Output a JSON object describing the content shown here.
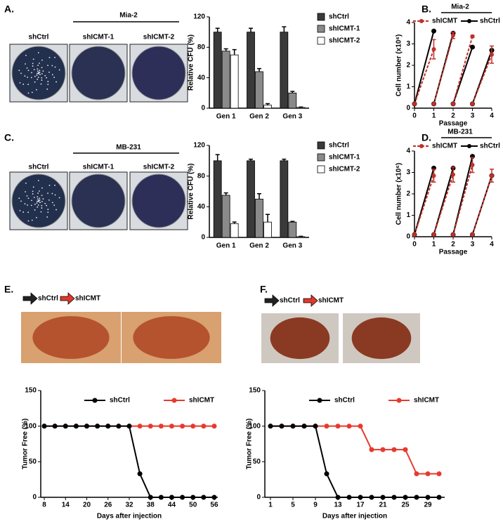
{
  "photos": [
    {
      "title": "Mia-2",
      "labels": [
        "shCtrl",
        "shICMT-1",
        "shICMT-2"
      ]
    },
    {
      "title": "MB-231",
      "labels": [
        "shCtrl",
        "shICMT-1",
        "shICMT-2"
      ]
    },
    {
      "labels": [
        "shCtrl",
        "shICMT"
      ]
    },
    {
      "labels": [
        "shCtrl",
        "shICMT"
      ]
    }
  ],
  "chart_data": [
    {
      "type": "bar",
      "panel": "A.",
      "ylabel": "Relative CFU (%)",
      "categories": [
        "Gen 1",
        "Gen 2",
        "Gen 3"
      ],
      "series": [
        {
          "name": "shCtrl",
          "color": "#3a3a3a",
          "values": [
            100,
            100,
            100
          ],
          "errors": [
            5,
            5,
            7
          ]
        },
        {
          "name": "shICMT-1",
          "color": "#8a8a8a",
          "values": [
            75,
            48,
            20
          ],
          "errors": [
            3,
            4,
            2
          ]
        },
        {
          "name": "shICMT-2",
          "color": "#ffffff",
          "values": [
            70,
            4,
            1
          ],
          "errors": [
            7,
            2,
            0.5
          ]
        }
      ],
      "ylim": [
        0,
        120
      ],
      "yticks": [
        0,
        40,
        80,
        120
      ]
    },
    {
      "type": "segment",
      "panel": "B.",
      "title": "Mia-2",
      "xlabel": "Passage",
      "ylabel": "Cell number (x10⁶)",
      "x": [
        0,
        1,
        1,
        2,
        2,
        3,
        3,
        4
      ],
      "series": [
        {
          "name": "shCtrl",
          "color": "#000000",
          "dashed": false,
          "values": [
            0.2,
            3.6,
            0.2,
            3.5,
            0.2,
            2.85,
            0.2,
            2.7
          ],
          "errors": [
            null,
            null,
            null,
            null,
            null,
            null,
            null,
            null
          ]
        },
        {
          "name": "shICMT",
          "color": "#c0302a",
          "dashed": true,
          "values": [
            0.2,
            2.75,
            0.2,
            3.4,
            0.2,
            3.35,
            0.2,
            2.5
          ],
          "errors": [
            null,
            0.45,
            null,
            0.15,
            null,
            0.05,
            null,
            0.4
          ]
        }
      ],
      "xlim": [
        0,
        4
      ],
      "xticks": [
        0,
        1,
        2,
        3,
        4
      ],
      "ylim": [
        0,
        4
      ],
      "yticks": [
        0,
        1,
        2,
        3,
        4
      ]
    },
    {
      "type": "bar",
      "panel": "C.",
      "ylabel": "Relative CFU (%)",
      "categories": [
        "Gen 1",
        "Gen 2",
        "Gen 3"
      ],
      "series": [
        {
          "name": "shCtrl",
          "color": "#3a3a3a",
          "values": [
            100,
            100,
            100
          ],
          "errors": [
            8,
            2,
            2
          ]
        },
        {
          "name": "shICMT-1",
          "color": "#8a8a8a",
          "values": [
            55,
            50,
            20
          ],
          "errors": [
            3,
            7,
            1
          ]
        },
        {
          "name": "shICMT-2",
          "color": "#ffffff",
          "values": [
            18,
            20,
            1
          ],
          "errors": [
            2,
            10,
            0.5
          ]
        }
      ],
      "ylim": [
        0,
        120
      ],
      "yticks": [
        0,
        40,
        80,
        120
      ]
    },
    {
      "type": "segment",
      "panel": "D.",
      "title": "MB-231",
      "xlabel": "Passage",
      "ylabel": "Cell number (x10⁶)",
      "x": [
        0,
        1,
        1,
        2,
        2,
        3,
        3,
        4
      ],
      "series": [
        {
          "name": "shCtrl",
          "color": "#000000",
          "dashed": false,
          "values": [
            0.1,
            3.2,
            0.1,
            3.2,
            0.1,
            3.75,
            0.1,
            2.85
          ],
          "errors": [
            null,
            null,
            null,
            null,
            null,
            null,
            null,
            null
          ]
        },
        {
          "name": "shICMT",
          "color": "#c0302a",
          "dashed": true,
          "values": [
            0.1,
            2.85,
            0.1,
            2.9,
            0.1,
            3.35,
            0.1,
            2.85
          ],
          "errors": [
            null,
            0.3,
            null,
            0.35,
            null,
            0.35,
            null,
            0.3
          ]
        }
      ],
      "xlim": [
        0,
        4
      ],
      "xticks": [
        0,
        1,
        2,
        3,
        4
      ],
      "ylim": [
        0,
        4
      ],
      "yticks": [
        0,
        1,
        2,
        3,
        4
      ]
    },
    {
      "type": "line",
      "panel": "E.",
      "xlabel": "Days after injection",
      "ylabel": "Tumor Free (%)",
      "x": [
        8,
        11,
        14,
        17,
        20,
        23,
        26,
        29,
        32,
        35,
        38,
        41,
        44,
        47,
        50,
        53,
        56
      ],
      "series": [
        {
          "name": "shICMT",
          "color": "#e8392e",
          "values": [
            100,
            100,
            100,
            100,
            100,
            100,
            100,
            100,
            100,
            100,
            100,
            100,
            100,
            100,
            100,
            100,
            100
          ]
        },
        {
          "name": "shCtrl",
          "color": "#000000",
          "values": [
            100,
            100,
            100,
            100,
            100,
            100,
            100,
            100,
            100,
            33,
            0,
            0,
            0,
            0,
            0,
            0,
            0
          ]
        }
      ],
      "xlim": [
        7,
        57
      ],
      "xticks": [
        8,
        14,
        20,
        26,
        32,
        38,
        44,
        50,
        56
      ],
      "ylim": [
        0,
        150
      ],
      "yticks": [
        0,
        50,
        100,
        150
      ]
    },
    {
      "type": "line",
      "panel": "F.",
      "xlabel": "Days after injection",
      "ylabel": "Tumor Free (%)",
      "x": [
        1,
        3,
        5,
        7,
        9,
        11,
        13,
        15,
        17,
        19,
        21,
        23,
        25,
        27,
        29,
        31
      ],
      "series": [
        {
          "name": "shICMT",
          "color": "#e8392e",
          "values": [
            100,
            100,
            100,
            100,
            100,
            100,
            100,
            100,
            100,
            67,
            67,
            67,
            67,
            33,
            33,
            33
          ]
        },
        {
          "name": "shCtrl",
          "color": "#000000",
          "values": [
            100,
            100,
            100,
            100,
            100,
            33,
            0,
            0,
            0,
            0,
            0,
            0,
            0,
            0,
            0,
            0
          ]
        }
      ],
      "xlim": [
        0,
        32
      ],
      "xticks": [
        1,
        5,
        9,
        13,
        17,
        21,
        25,
        29
      ],
      "ylim": [
        0,
        150
      ],
      "yticks": [
        0,
        50,
        100,
        150
      ]
    }
  ]
}
